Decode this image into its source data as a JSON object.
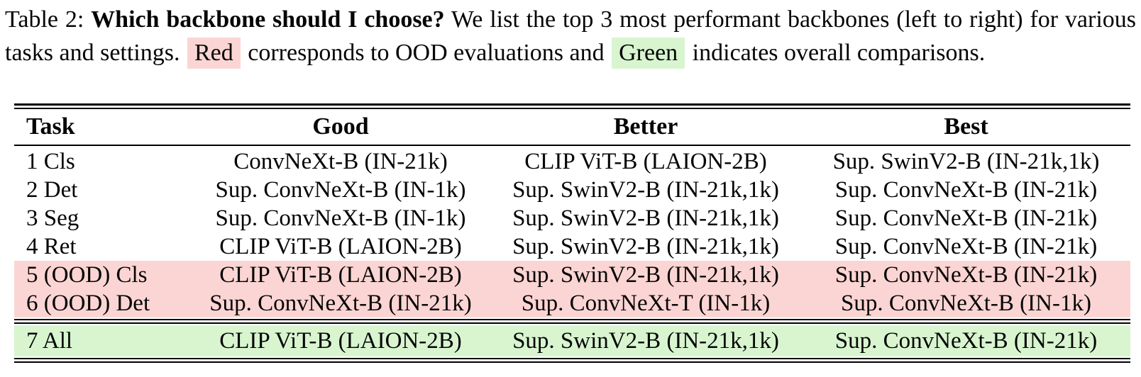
{
  "caption": {
    "label": "Table 2:",
    "title_bold": "Which backbone should I choose?",
    "body_1": "We list the top 3 most performant backbones (left to right) for various tasks and settings.",
    "red_word": "Red",
    "body_2": "corresponds to OOD evaluations and",
    "green_word": "Green",
    "body_3": "indicates overall comparisons."
  },
  "colors": {
    "ood_red": "#fbd5d3",
    "overall_green": "#d8f5d0",
    "text": "#050505"
  },
  "table": {
    "headers": {
      "task": "Task",
      "good": "Good",
      "better": "Better",
      "best": "Best"
    },
    "rows": [
      {
        "task": "1 Cls",
        "good": "ConvNeXt-B (IN-21k)",
        "better": "CLIP ViT-B (LAION-2B)",
        "best": "Sup. SwinV2-B (IN-21k,1k)",
        "highlight": "none"
      },
      {
        "task": "2 Det",
        "good": "Sup. ConvNeXt-B (IN-1k)",
        "better": "Sup. SwinV2-B (IN-21k,1k)",
        "best": "Sup. ConvNeXt-B (IN-21k)",
        "highlight": "none"
      },
      {
        "task": "3 Seg",
        "good": "Sup. ConvNeXt-B (IN-1k)",
        "better": "Sup. SwinV2-B (IN-21k,1k)",
        "best": "Sup. ConvNeXt-B (IN-21k)",
        "highlight": "none"
      },
      {
        "task": "4 Ret",
        "good": "CLIP ViT-B (LAION-2B)",
        "better": "Sup. SwinV2-B (IN-21k,1k)",
        "best": "Sup. ConvNeXt-B (IN-21k)",
        "highlight": "none"
      },
      {
        "task": "5 (OOD) Cls",
        "good": "CLIP ViT-B (LAION-2B)",
        "better": "Sup. SwinV2-B (IN-21k,1k)",
        "best": "Sup. ConvNeXt-B (IN-21k)",
        "highlight": "red-ood"
      },
      {
        "task": "6 (OOD) Det",
        "good": "Sup. ConvNeXt-B (IN-21k)",
        "better": "Sup. ConvNeXt-T (IN-1k)",
        "best": "Sup. ConvNeXt-B (IN-1k)",
        "highlight": "red-ood"
      },
      {
        "task": "7 All",
        "good": "CLIP ViT-B (LAION-2B)",
        "better": "Sup. SwinV2-B (IN-21k,1k)",
        "best": "Sup. ConvNeXt-B (IN-21k)",
        "highlight": "green-overall"
      }
    ]
  }
}
